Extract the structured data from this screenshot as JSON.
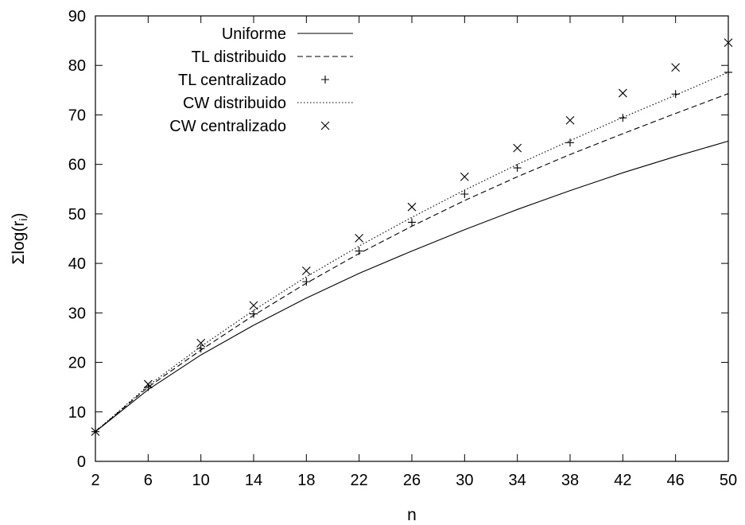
{
  "chart_data": {
    "type": "line",
    "xlabel": "n",
    "ylabel": "Σlog(r",
    "ylabel_sub": "i",
    "ylabel_close": ")",
    "xlim": [
      2,
      50
    ],
    "ylim": [
      0,
      90
    ],
    "xticks": [
      2,
      6,
      10,
      14,
      18,
      22,
      26,
      30,
      34,
      38,
      42,
      46,
      50
    ],
    "yticks": [
      0,
      10,
      20,
      30,
      40,
      50,
      60,
      70,
      80,
      90
    ],
    "grid": false,
    "legend_position": "top-left",
    "x": [
      2,
      6,
      10,
      14,
      18,
      22,
      26,
      30,
      34,
      38,
      42,
      46,
      50
    ],
    "series": [
      {
        "name": "Uniforme",
        "style": "solid-line",
        "values": [
          6.0,
          14.5,
          21.5,
          27.5,
          33.0,
          38.0,
          42.5,
          46.8,
          50.9,
          54.7,
          58.3,
          61.6,
          64.7
        ]
      },
      {
        "name": "TL distribuido",
        "style": "dashed-line",
        "values": [
          6.0,
          15.0,
          22.5,
          29.5,
          36.0,
          42.0,
          47.5,
          52.7,
          57.5,
          62.0,
          66.2,
          70.3,
          74.3
        ]
      },
      {
        "name": "TL centralizado",
        "style": "plus-points",
        "values": [
          6.0,
          15.0,
          22.8,
          29.8,
          36.3,
          42.5,
          48.3,
          54.0,
          59.3,
          64.4,
          69.4,
          74.2,
          78.6
        ]
      },
      {
        "name": "CW distribuido",
        "style": "dotted-line",
        "values": [
          6.0,
          15.3,
          23.2,
          30.5,
          37.3,
          43.5,
          49.3,
          54.8,
          60.0,
          64.8,
          69.5,
          74.0,
          78.6
        ]
      },
      {
        "name": "CW centralizado",
        "style": "x-points",
        "values": [
          6.0,
          15.6,
          23.9,
          31.5,
          38.5,
          45.1,
          51.4,
          57.5,
          63.3,
          68.9,
          74.4,
          79.6,
          84.6
        ]
      }
    ]
  }
}
